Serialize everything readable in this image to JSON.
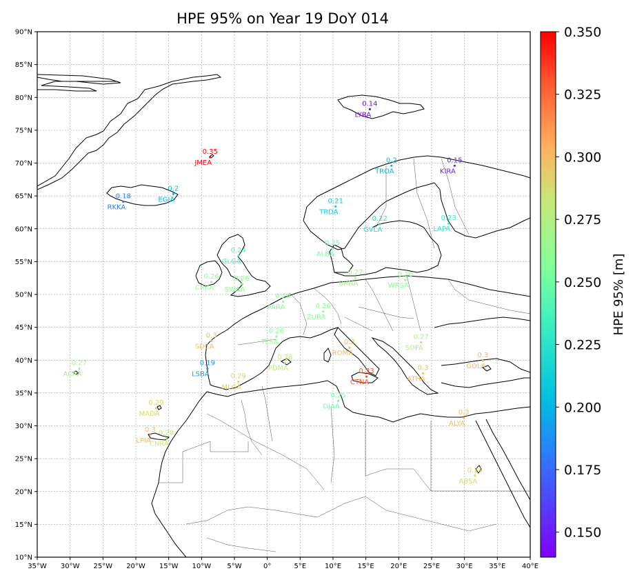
{
  "title": "HPE 95% on Year 19 DoY 014",
  "map": {
    "lon_range": [
      -35,
      40
    ],
    "lat_range": [
      10,
      90
    ],
    "x_ticks": [
      "35°W",
      "30°W",
      "25°W",
      "20°W",
      "15°W",
      "10°W",
      "5°W",
      "0°",
      "5°E",
      "10°E",
      "15°E",
      "20°E",
      "25°E",
      "30°E",
      "35°E",
      "40°E"
    ],
    "y_ticks": [
      "10°N",
      "15°N",
      "20°N",
      "25°N",
      "30°N",
      "35°N",
      "40°N",
      "45°N",
      "50°N",
      "55°N",
      "60°N",
      "65°N",
      "70°N",
      "75°N",
      "80°N",
      "85°N",
      "90°N"
    ],
    "grid": true
  },
  "colorbar": {
    "label": "HPE 95% [m]",
    "range": [
      0.14,
      0.35
    ],
    "ticks": [
      "0.150",
      "0.175",
      "0.200",
      "0.225",
      "0.250",
      "0.275",
      "0.300",
      "0.325",
      "0.350"
    ],
    "colormap": "rainbow"
  },
  "stations": [
    {
      "name": "LYRA",
      "value": "0.14",
      "lon": 15.6,
      "lat": 78.2,
      "hpe": 0.14
    },
    {
      "name": "JMEA",
      "value": "0.35",
      "lon": -8.7,
      "lat": 70.9,
      "hpe": 0.35
    },
    {
      "name": "TROA",
      "value": "0.2",
      "lon": 18.9,
      "lat": 69.6,
      "hpe": 0.2
    },
    {
      "name": "KIRA",
      "value": "0.15",
      "lon": 28.5,
      "lat": 69.6,
      "hpe": 0.15
    },
    {
      "name": "EGIA",
      "value": "0.2",
      "lon": -14.3,
      "lat": 65.3,
      "hpe": 0.2
    },
    {
      "name": "RKKA",
      "value": "0.18",
      "lon": -21.9,
      "lat": 64.1,
      "hpe": 0.18
    },
    {
      "name": "TRDA",
      "value": "0.21",
      "lon": 10.4,
      "lat": 63.4,
      "hpe": 0.21
    },
    {
      "name": "GVLA",
      "value": "0.22",
      "lon": 17.1,
      "lat": 60.7,
      "hpe": 0.22
    },
    {
      "name": "LAPA",
      "value": "0.23",
      "lon": 27.6,
      "lat": 60.8,
      "hpe": 0.23
    },
    {
      "name": "GLGA",
      "value": "0.24",
      "lon": -4.4,
      "lat": 55.9,
      "hpe": 0.24
    },
    {
      "name": "ALBA",
      "value": "0.25",
      "lon": 9.9,
      "lat": 57.0,
      "hpe": 0.25
    },
    {
      "name": "CRKA",
      "value": "0.26",
      "lon": -8.5,
      "lat": 51.9,
      "hpe": 0.26
    },
    {
      "name": "SWAA",
      "value": "0.26",
      "lon": -3.9,
      "lat": 51.6,
      "hpe": 0.26
    },
    {
      "name": "BRNA",
      "value": "0.27",
      "lon": 13.4,
      "lat": 52.5,
      "hpe": 0.27
    },
    {
      "name": "WRSA",
      "value": "0.26",
      "lon": 21.0,
      "lat": 52.2,
      "hpe": 0.26
    },
    {
      "name": "PARA",
      "value": "0.26",
      "lon": 2.4,
      "lat": 48.9,
      "hpe": 0.26
    },
    {
      "name": "ZURA",
      "value": "0.26",
      "lon": 8.5,
      "lat": 47.4,
      "hpe": 0.26
    },
    {
      "name": "SDCA",
      "value": "0.3",
      "lon": -8.5,
      "lat": 42.9,
      "hpe": 0.3
    },
    {
      "name": "TLSA",
      "value": "0.26",
      "lon": 1.4,
      "lat": 43.6,
      "hpe": 0.26
    },
    {
      "name": "ROMA",
      "value": "0.3",
      "lon": 12.5,
      "lat": 41.9,
      "hpe": 0.3
    },
    {
      "name": "SOFA",
      "value": "0.27",
      "lon": 23.4,
      "lat": 42.7,
      "hpe": 0.27
    },
    {
      "name": "GOLA",
      "value": "0.3",
      "lon": 32.8,
      "lat": 39.9,
      "hpe": 0.3
    },
    {
      "name": "ACRA",
      "value": "0.27",
      "lon": -28.6,
      "lat": 38.7,
      "hpe": 0.27
    },
    {
      "name": "LSBA",
      "value": "0.19",
      "lon": -9.1,
      "lat": 38.7,
      "hpe": 0.19
    },
    {
      "name": "PDMA",
      "value": "0.28",
      "lon": 2.7,
      "lat": 39.6,
      "hpe": 0.28
    },
    {
      "name": "CTNA",
      "value": "0.33",
      "lon": 15.1,
      "lat": 37.5,
      "hpe": 0.33
    },
    {
      "name": "ATHA",
      "value": "0.3",
      "lon": 23.7,
      "lat": 38.0,
      "hpe": 0.3
    },
    {
      "name": "MLGA",
      "value": "0.29",
      "lon": -4.4,
      "lat": 36.7,
      "hpe": 0.29
    },
    {
      "name": "DJAA",
      "value": "0.25",
      "lon": 10.8,
      "lat": 33.8,
      "hpe": 0.25
    },
    {
      "name": "MADA",
      "value": "0.29",
      "lon": -16.9,
      "lat": 32.7,
      "hpe": 0.29
    },
    {
      "name": "ALYA",
      "value": "0.3",
      "lon": 29.9,
      "lat": 31.2,
      "hpe": 0.3
    },
    {
      "name": "LPIA",
      "value": "0.3",
      "lon": -17.8,
      "lat": 28.6,
      "hpe": 0.3
    },
    {
      "name": "CNRA",
      "value": "0.28",
      "lon": -15.4,
      "lat": 28.1,
      "hpe": 0.28
    },
    {
      "name": "ABSA",
      "value": "0.29",
      "lon": 31.6,
      "lat": 22.4,
      "hpe": 0.29
    }
  ]
}
